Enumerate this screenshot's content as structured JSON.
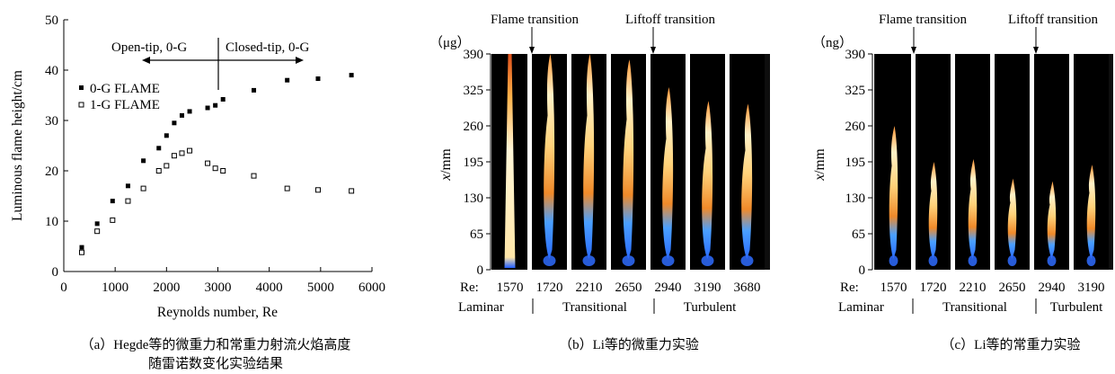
{
  "chart_data": [
    {
      "type": "scatter",
      "xlabel": "Reynolds number, Re",
      "ylabel": "Luminous flame height/cm",
      "xlim": [
        0,
        6000
      ],
      "ylim": [
        0,
        50
      ],
      "xticks": [
        "0",
        "1000",
        "2000",
        "3000",
        "4000",
        "5000",
        "6000"
      ],
      "yticks": [
        "0",
        "10",
        "20",
        "30",
        "40",
        "50"
      ],
      "legend_position": "left",
      "annotations": [
        "Open-tip, 0-G",
        "Closed-tip, 0-G"
      ],
      "series": [
        {
          "name": "0-G FLAME",
          "marker": "filled-square",
          "points": [
            [
              350,
              4.8
            ],
            [
              650,
              9.5
            ],
            [
              950,
              14
            ],
            [
              1250,
              17
            ],
            [
              1550,
              22
            ],
            [
              1850,
              24.5
            ],
            [
              2000,
              27
            ],
            [
              2150,
              29.5
            ],
            [
              2300,
              31
            ],
            [
              2450,
              31.8
            ],
            [
              2800,
              32.5
            ],
            [
              2950,
              33
            ],
            [
              3100,
              34.2
            ],
            [
              3700,
              36
            ],
            [
              4350,
              38
            ],
            [
              4950,
              38.3
            ],
            [
              5600,
              39
            ]
          ]
        },
        {
          "name": "1-G FLAME",
          "marker": "open-square",
          "points": [
            [
              350,
              3.8
            ],
            [
              650,
              8
            ],
            [
              950,
              10.2
            ],
            [
              1250,
              14
            ],
            [
              1550,
              16.5
            ],
            [
              1850,
              20
            ],
            [
              2000,
              21
            ],
            [
              2150,
              23
            ],
            [
              2300,
              23.5
            ],
            [
              2450,
              24
            ],
            [
              2800,
              21.5
            ],
            [
              2950,
              20.5
            ],
            [
              3100,
              20
            ],
            [
              3700,
              19
            ],
            [
              4350,
              16.5
            ],
            [
              4950,
              16.2
            ],
            [
              5600,
              16
            ]
          ]
        }
      ],
      "caption": [
        "（a）Hegde等的微重力和常重力射流火焰高度",
        "随雷诺数变化实验结果"
      ]
    },
    {
      "type": "image-strip",
      "unit": "（μg）",
      "ylabel_var": "x",
      "ylabel_unit": "/mm",
      "yticks": [
        "0",
        "65",
        "130",
        "195",
        "260",
        "325",
        "390"
      ],
      "ylim": [
        0,
        390
      ],
      "re_label": "Re:",
      "re_values": [
        "1570",
        "1720",
        "2210",
        "2650",
        "2940",
        "3190",
        "3680"
      ],
      "flame_heights_mm": [
        390,
        390,
        390,
        380,
        330,
        305,
        300
      ],
      "transitions": [
        "Flame transition",
        "Liftoff transition"
      ],
      "regimes": [
        "Laminar",
        "Transitional",
        "Turbulent"
      ],
      "caption": "（b）Li等的微重力实验"
    },
    {
      "type": "image-strip",
      "unit": "（ng）",
      "ylabel_var": "x",
      "ylabel_unit": "/mm",
      "yticks": [
        "0",
        "65",
        "130",
        "195",
        "260",
        "325",
        "390"
      ],
      "ylim": [
        0,
        390
      ],
      "re_label": "Re:",
      "re_values": [
        "1570",
        "1720",
        "2210",
        "2650",
        "2940",
        "3190"
      ],
      "flame_heights_mm": [
        260,
        195,
        200,
        165,
        160,
        190
      ],
      "transitions": [
        "Flame transition",
        "Liftoff transition"
      ],
      "regimes": [
        "Laminar",
        "Transitional",
        "Turbulent"
      ],
      "caption": "（c）Li等的常重力实验"
    }
  ]
}
